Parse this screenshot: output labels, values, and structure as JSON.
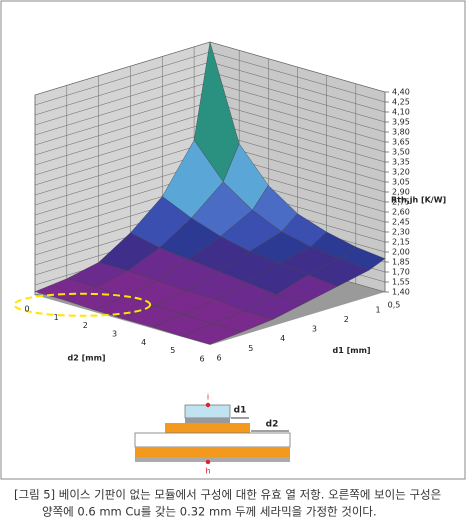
{
  "chart_data": {
    "type": "surface",
    "x_label": "d2 [mm]",
    "y_label": "d1 [mm]",
    "z_label": "Rth,jh [K/W]",
    "x": [
      0,
      1,
      2,
      3,
      4,
      5,
      6
    ],
    "xlim": [
      0,
      6
    ],
    "xticks": [
      0,
      1,
      2,
      3,
      4,
      5,
      6
    ],
    "y": [
      0.5,
      1,
      2,
      3,
      4,
      5,
      6
    ],
    "ylim": [
      0.5,
      6
    ],
    "yticks": [
      {
        "value": 0.5,
        "label": "0,5"
      },
      1,
      2,
      3,
      4,
      5,
      6
    ],
    "z": [
      [
        4.4,
        3.0,
        2.5,
        2.2,
        2.05,
        1.95,
        1.9
      ],
      [
        3.0,
        2.5,
        2.2,
        2.0,
        1.9,
        1.85,
        1.8
      ],
      [
        2.3,
        2.1,
        1.95,
        1.85,
        1.8,
        1.75,
        1.7
      ],
      [
        1.9,
        1.8,
        1.75,
        1.7,
        1.65,
        1.6,
        1.6
      ],
      [
        1.6,
        1.6,
        1.58,
        1.55,
        1.55,
        1.5,
        1.5
      ],
      [
        1.5,
        1.5,
        1.48,
        1.47,
        1.46,
        1.45,
        1.45
      ],
      [
        1.45,
        1.45,
        1.43,
        1.42,
        1.42,
        1.41,
        1.41
      ]
    ],
    "zlim": [
      1.4,
      4.4
    ],
    "zticks": [
      {
        "value": 1.4,
        "label": "1,40"
      },
      {
        "value": 1.55,
        "label": "1,55"
      },
      {
        "value": 1.7,
        "label": "1,70"
      },
      {
        "value": 1.85,
        "label": "1,85"
      },
      {
        "value": 2.0,
        "label": "2,00"
      },
      {
        "value": 2.15,
        "label": "2,15"
      },
      {
        "value": 2.3,
        "label": "2,30"
      },
      {
        "value": 2.45,
        "label": "2,45"
      },
      {
        "value": 2.6,
        "label": "2,60"
      },
      {
        "value": 2.75,
        "label": "2,75"
      },
      {
        "value": 2.9,
        "label": "2,90"
      },
      {
        "value": 3.05,
        "label": "3,05"
      },
      {
        "value": 3.2,
        "label": "3,20"
      },
      {
        "value": 3.35,
        "label": "3,35"
      },
      {
        "value": 3.5,
        "label": "3,50"
      },
      {
        "value": 3.65,
        "label": "3,65"
      },
      {
        "value": 3.8,
        "label": "3,80"
      },
      {
        "value": 3.95,
        "label": "3,95"
      },
      {
        "value": 4.1,
        "label": "4,10"
      },
      {
        "value": 4.25,
        "label": "4,25"
      },
      {
        "value": 4.4,
        "label": "4,40"
      }
    ],
    "colorscale": [
      "#7a2a8c",
      "#6a2a8e",
      "#3f2f8a",
      "#2d3a94",
      "#3a4fb0",
      "#4a6cc4",
      "#3f87c8",
      "#5aa6d6",
      "#8fc9e6",
      "#c4e6f2",
      "#8fd0d8",
      "#3ba8a8",
      "#2a9080",
      "#3aa064",
      "#6cbf4a",
      "#a8d440",
      "#e6e640",
      "#f2c23a",
      "#ee8a30",
      "#e04028"
    ]
  },
  "diagram": {
    "top": "i",
    "d1": "d1",
    "d2": "d2",
    "bottom": "h"
  },
  "caption": [
    "[그림 5] 베이스 기판이 없는 모듈에서 구성에 대한 유효 열 저항. 오른쪽에 보이는 구성은",
    "양쪽에 0.6 mm Cu를 갖는 0.32 mm 두께 세라믹을 가정한 것이다."
  ]
}
